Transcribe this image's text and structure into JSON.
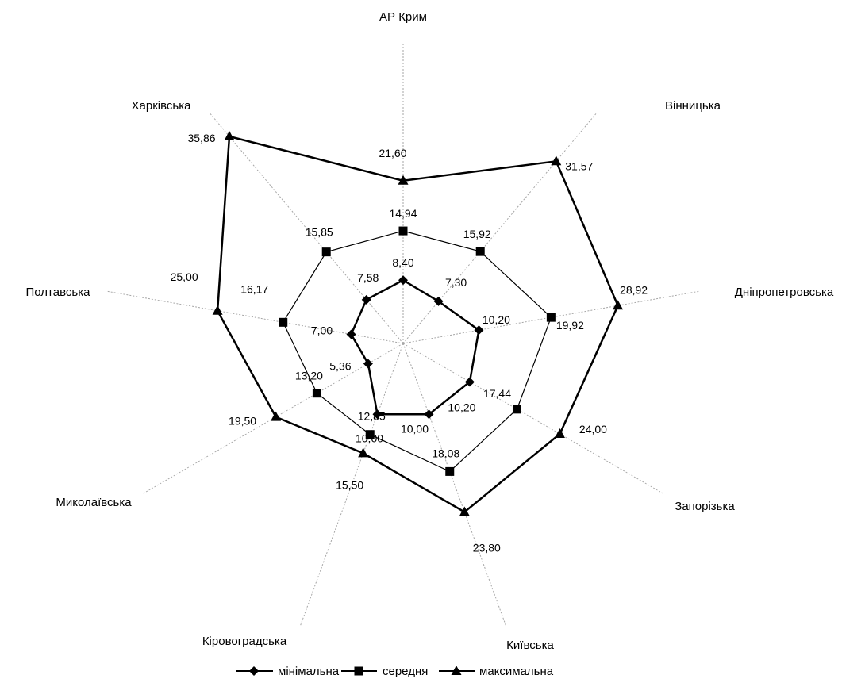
{
  "chart_data": {
    "type": "radar",
    "categories": [
      "АР Крим",
      "Вінницька",
      "Дніпропетровська",
      "Запорізька",
      "Київська",
      "Кіровоградська",
      "Миколаївська",
      "Полтавська",
      "Харківська"
    ],
    "series": [
      {
        "name": "мінімальна",
        "marker": "diamond",
        "values": [
          8.4,
          7.3,
          10.2,
          10.2,
          10.0,
          10.0,
          5.36,
          7.0,
          7.58
        ],
        "labels": [
          "8,40",
          "7,30",
          "10,20",
          "10,20",
          "10,00",
          "10,00",
          "5,36",
          "7,00",
          "7,58"
        ]
      },
      {
        "name": "середня",
        "marker": "square",
        "values": [
          14.94,
          15.92,
          19.92,
          17.44,
          18.08,
          12.85,
          13.2,
          16.17,
          15.85
        ],
        "labels": [
          "14,94",
          "15,92",
          "19,92",
          "17,44",
          "18,08",
          "12,85",
          "13,20",
          "16,17",
          "15,85"
        ]
      },
      {
        "name": "максимальна",
        "marker": "triangle",
        "values": [
          21.6,
          31.57,
          28.92,
          24.0,
          23.8,
          15.5,
          19.5,
          25.0,
          35.86
        ],
        "labels": [
          "21,60",
          "31,57",
          "28,92",
          "24,00",
          "23,80",
          "15,50",
          "19,50",
          "25,00",
          "35,86"
        ]
      }
    ],
    "range": [
      0,
      40
    ],
    "legend_position": "bottom",
    "colors": {
      "line": "#000000",
      "axis": "#a6a6a6"
    }
  }
}
